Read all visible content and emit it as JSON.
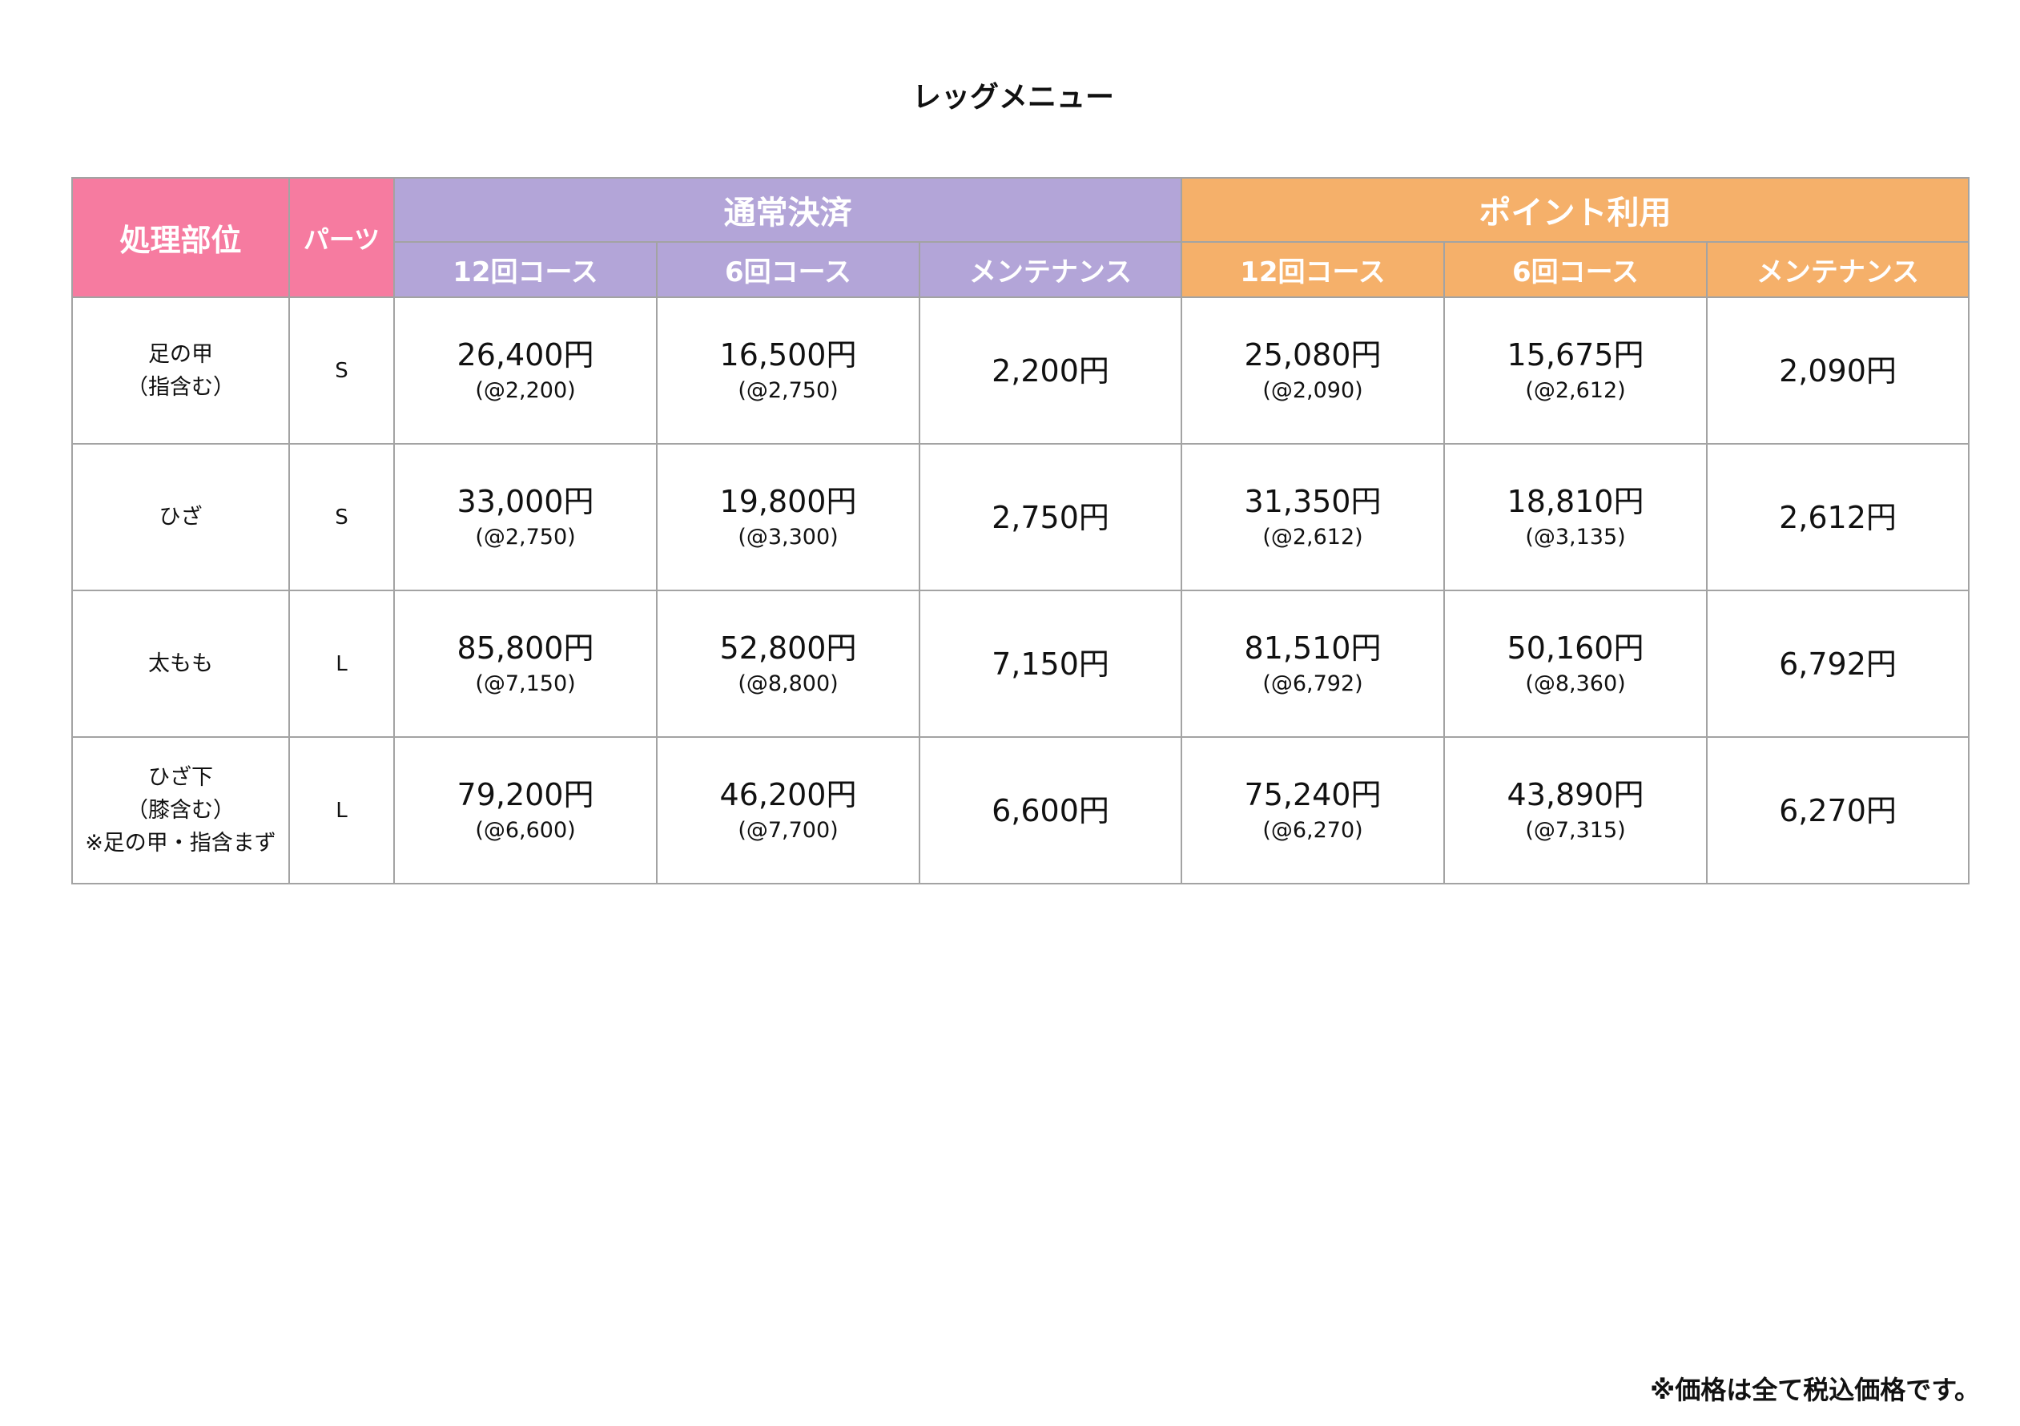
{
  "title": "レッグメニュー",
  "header": {
    "area": "処理部位",
    "parts": "パーツ",
    "groups": [
      {
        "label": "通常決済",
        "color": "#b3a5d8"
      },
      {
        "label": "ポイント利用",
        "color": "#f5b06a"
      }
    ],
    "sub": [
      "12回コース",
      "6回コース",
      "メンテナンス",
      "12回コース",
      "6回コース",
      "メンテナンス"
    ]
  },
  "rows": [
    {
      "area": [
        "足の甲",
        "（指含む）"
      ],
      "size": "S",
      "cells": [
        [
          "26,400円",
          "(@2,200)"
        ],
        [
          "16,500円",
          "(@2,750)"
        ],
        [
          "2,200円",
          ""
        ],
        [
          "25,080円",
          "(@2,090)"
        ],
        [
          "15,675円",
          "(@2,612)"
        ],
        [
          "2,090円",
          ""
        ]
      ]
    },
    {
      "area": [
        "ひざ"
      ],
      "size": "S",
      "cells": [
        [
          "33,000円",
          "(@2,750)"
        ],
        [
          "19,800円",
          "(@3,300)"
        ],
        [
          "2,750円",
          ""
        ],
        [
          "31,350円",
          "(@2,612)"
        ],
        [
          "18,810円",
          "(@3,135)"
        ],
        [
          "2,612円",
          ""
        ]
      ]
    },
    {
      "area": [
        "太もも"
      ],
      "size": "L",
      "cells": [
        [
          "85,800円",
          "(@7,150)"
        ],
        [
          "52,800円",
          "(@8,800)"
        ],
        [
          "7,150円",
          ""
        ],
        [
          "81,510円",
          "(@6,792)"
        ],
        [
          "50,160円",
          "(@8,360)"
        ],
        [
          "6,792円",
          ""
        ]
      ]
    },
    {
      "area": [
        "ひざ下",
        "（膝含む）",
        "※足の甲・指含まず"
      ],
      "size": "L",
      "cells": [
        [
          "79,200円",
          "(@6,600)"
        ],
        [
          "46,200円",
          "(@7,700)"
        ],
        [
          "6,600円",
          ""
        ],
        [
          "75,240円",
          "(@6,270)"
        ],
        [
          "43,890円",
          "(@7,315)"
        ],
        [
          "6,270円",
          ""
        ]
      ]
    }
  ],
  "footnote": "※価格は全て税込価格です。",
  "colors": {
    "area_header": "#f67ba0",
    "border": "#a3a3a3"
  }
}
